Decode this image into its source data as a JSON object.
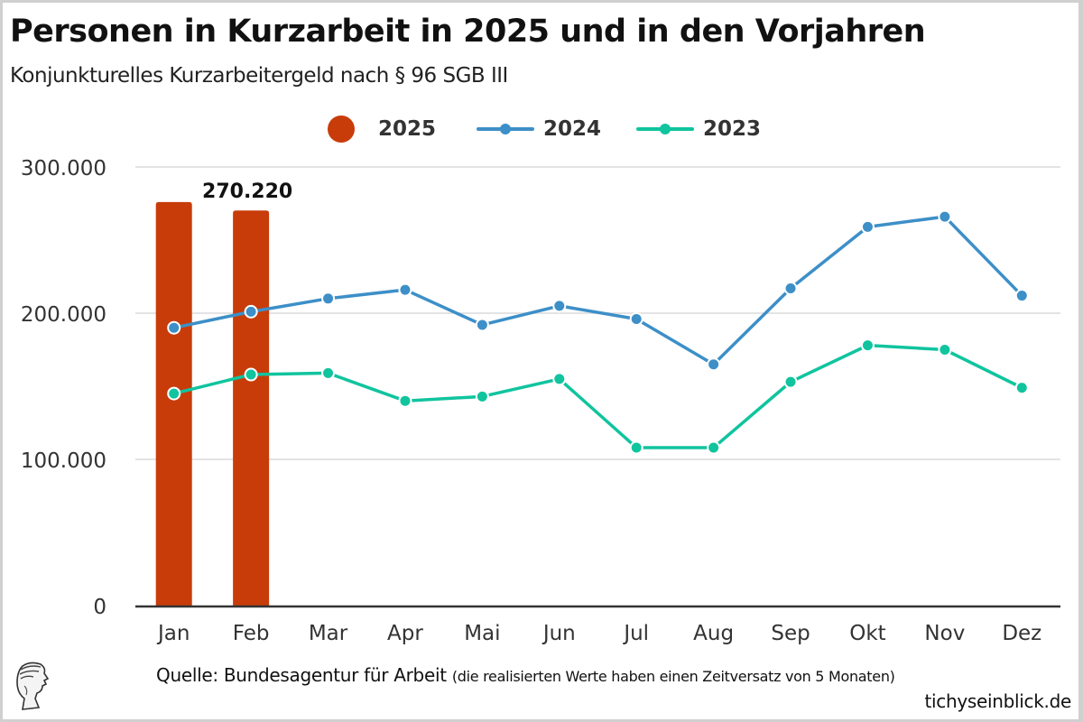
{
  "title": "Personen in Kurzarbeit in 2025 und in den Vorjahren",
  "subtitle": "Konjunkturelles Kurzarbeitergeld nach § 96 SGB III",
  "footer": {
    "source": "Quelle: Bundesagentur für Arbeit",
    "note": "(die realisierten Werte haben einen Zeitversatz von 5 Monaten)",
    "site": "tichyseinblick.de",
    "logo_icon": "hermes-head-logo-icon"
  },
  "colors": {
    "s2025": "#c83c0a",
    "s2024": "#3d8fc8",
    "s2023": "#10c49e",
    "grid": "#e3e3e3",
    "axis": "#333333"
  },
  "chart_data": {
    "type": "bar+line",
    "title": "Personen in Kurzarbeit in 2025 und in den Vorjahren",
    "subtitle": "Konjunkturelles Kurzarbeitergeld nach § 96 SGB III",
    "xlabel": "",
    "ylabel": "",
    "categories": [
      "Jan",
      "Feb",
      "Mar",
      "Apr",
      "Mai",
      "Jun",
      "Jul",
      "Aug",
      "Sep",
      "Okt",
      "Nov",
      "Dez"
    ],
    "ylim": [
      0,
      300000
    ],
    "yticks": [
      0,
      100000,
      200000,
      300000
    ],
    "ytick_labels": [
      "0",
      "100.000",
      "200.000",
      "300.000"
    ],
    "grid": true,
    "legend_position": "top-center",
    "series": [
      {
        "name": "2025",
        "type": "bar",
        "values": [
          276000,
          270220,
          null,
          null,
          null,
          null,
          null,
          null,
          null,
          null,
          null,
          null
        ]
      },
      {
        "name": "2024",
        "type": "line",
        "values": [
          190000,
          201000,
          210000,
          216000,
          192000,
          205000,
          196000,
          165000,
          217000,
          259000,
          266000,
          212000
        ]
      },
      {
        "name": "2023",
        "type": "line",
        "values": [
          145000,
          158000,
          159000,
          140000,
          143000,
          155000,
          108000,
          108000,
          153000,
          178000,
          175000,
          149000
        ]
      }
    ],
    "annotations": [
      {
        "series": "2025",
        "category": "Feb",
        "text": "270.220"
      }
    ]
  }
}
